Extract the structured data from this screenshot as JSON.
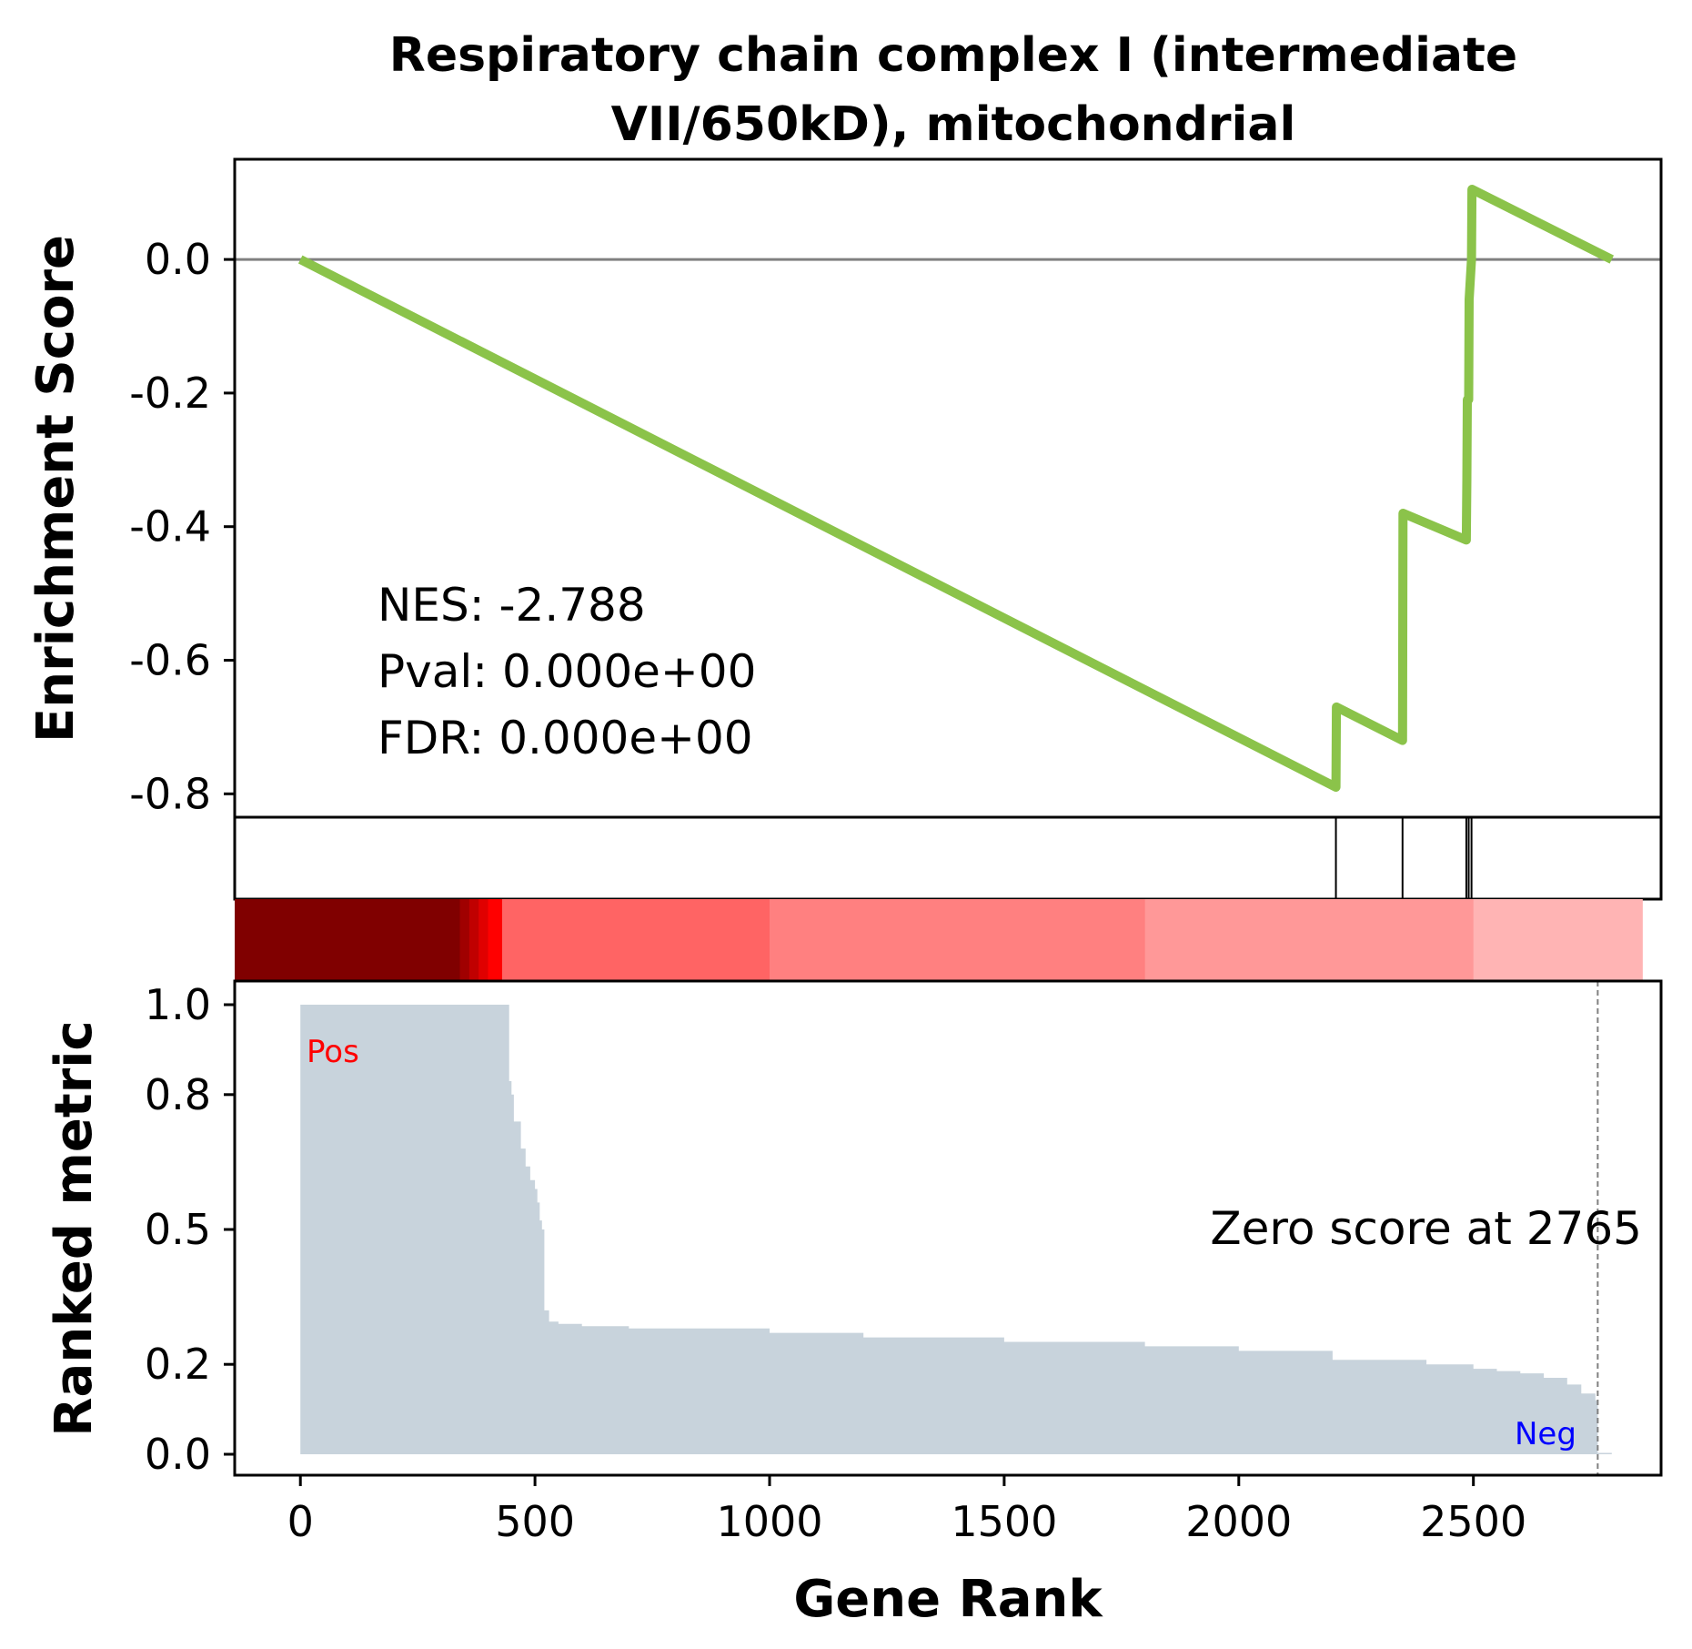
{
  "chart_data": {
    "type": "line",
    "title_lines": [
      "Respiratory chain complex I (intermediate",
      "VII/650kD), mitochondrial"
    ],
    "xlabel": "Gene Rank",
    "xlim": [
      -140,
      2900
    ],
    "x_ticks": [
      0,
      500,
      1000,
      1500,
      2000,
      2500
    ],
    "x_tick_labels": [
      "0",
      "500",
      "1000",
      "1500",
      "2000",
      "2500"
    ],
    "colors": {
      "es_line": "#8bc34a",
      "zero_line": "#808080",
      "ranked_fill": "#c8d3dc",
      "pos_label": "#ff0000",
      "neg_label": "#0000ff"
    },
    "enrichment_panel": {
      "ylabel": "Enrichment Score",
      "ylim": [
        -0.835,
        0.15
      ],
      "y_ticks": [
        0.0,
        -0.2,
        -0.4,
        -0.6,
        -0.8
      ],
      "y_tick_labels": [
        "0.0",
        "-0.2",
        "-0.4",
        "-0.6",
        "-0.8"
      ],
      "series": [
        {
          "x": [
            0,
            2207,
            2208,
            2349,
            2350,
            2485,
            2486,
            2487,
            2490,
            2491,
            2496,
            2497,
            2795
          ],
          "y": [
            0.0,
            -0.79,
            -0.67,
            -0.72,
            -0.38,
            -0.42,
            -0.33,
            -0.21,
            -0.21,
            -0.06,
            0.0,
            0.105,
            0.0
          ]
        }
      ],
      "annotations": [
        "NES: -2.788",
        "Pval: 0.000e+00",
        "FDR: 0.000e+00"
      ]
    },
    "hits_panel": {
      "hit_positions": [
        2207,
        2349,
        2485,
        2490,
        2496
      ]
    },
    "heatmap_bar": {
      "segments": [
        {
          "x_start": -140,
          "x_end": 340,
          "color": "#800000"
        },
        {
          "x_start": 340,
          "x_end": 360,
          "color": "#a00000"
        },
        {
          "x_start": 360,
          "x_end": 380,
          "color": "#c00000"
        },
        {
          "x_start": 380,
          "x_end": 400,
          "color": "#e00000"
        },
        {
          "x_start": 400,
          "x_end": 430,
          "color": "#ff0000"
        },
        {
          "x_start": 430,
          "x_end": 1000,
          "color": "#ff6464"
        },
        {
          "x_start": 1000,
          "x_end": 1800,
          "color": "#ff8080"
        },
        {
          "x_start": 1800,
          "x_end": 2500,
          "color": "#ff9898"
        },
        {
          "x_start": 2500,
          "x_end": 2860,
          "color": "#ffb4b4"
        }
      ]
    },
    "ranked_panel": {
      "ylabel": "Ranked metric",
      "ylim": [
        -0.05,
        1.0
      ],
      "y_ticks": [
        0.0,
        0.2,
        0.5,
        0.8,
        1.0
      ],
      "y_tick_labels": [
        "0.0",
        "0.2",
        "0.5",
        "0.8",
        "1.0"
      ],
      "profile": {
        "x": [
          0,
          440,
          445,
          450,
          455,
          460,
          470,
          480,
          490,
          500,
          505,
          510,
          515,
          520,
          530,
          550,
          600,
          700,
          800,
          1000,
          1200,
          1500,
          1800,
          2000,
          2200,
          2400,
          2500,
          2550,
          2600,
          2650,
          2700,
          2730,
          2760,
          2765,
          2795
        ],
        "y": [
          1.0,
          1.0,
          0.83,
          0.8,
          0.74,
          0.74,
          0.68,
          0.64,
          0.61,
          0.59,
          0.56,
          0.52,
          0.5,
          0.32,
          0.295,
          0.29,
          0.285,
          0.28,
          0.28,
          0.27,
          0.26,
          0.25,
          0.24,
          0.23,
          0.21,
          0.2,
          0.19,
          0.185,
          0.18,
          0.17,
          0.155,
          0.135,
          0.12,
          0.003,
          0.003
        ]
      },
      "zero_score_rank": 2765,
      "zero_score_text": "Zero score at 2765",
      "pos_label": "Pos",
      "neg_label": "Neg"
    }
  }
}
